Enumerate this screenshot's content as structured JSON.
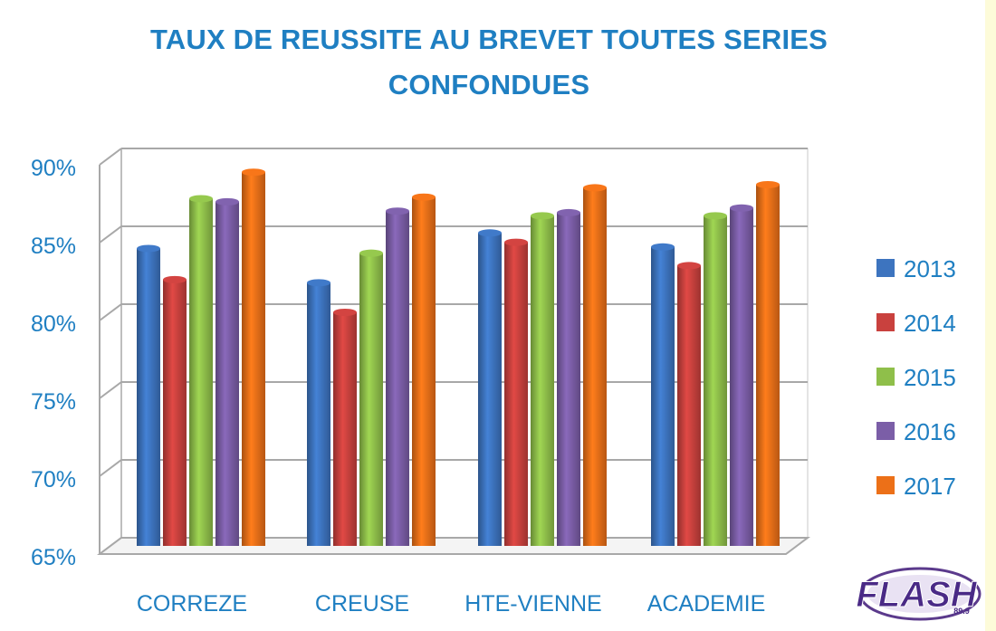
{
  "chart_data": {
    "type": "bar",
    "title_lines": [
      "TAUX DE REUSSITE AU BREVET TOUTES SERIES",
      "CONFONDUES"
    ],
    "categories": [
      "CORREZE",
      "CREUSE",
      "HTE-VIENNE",
      "ACADEMIE"
    ],
    "series": [
      {
        "name": "2013",
        "color": "#3d74bf",
        "values": [
          84.1,
          81.9,
          85.1,
          84.2
        ]
      },
      {
        "name": "2014",
        "color": "#c9413e",
        "values": [
          82.1,
          80.0,
          84.5,
          83.0
        ]
      },
      {
        "name": "2015",
        "color": "#8fbf4a",
        "values": [
          87.3,
          83.8,
          86.2,
          86.2
        ]
      },
      {
        "name": "2016",
        "color": "#7b5ea7",
        "values": [
          87.1,
          86.5,
          86.4,
          86.7
        ]
      },
      {
        "name": "2017",
        "color": "#ec7018",
        "values": [
          89.0,
          87.4,
          88.0,
          88.2
        ]
      }
    ],
    "ylim": [
      65,
      90
    ],
    "yticks": [
      "65%",
      "70%",
      "75%",
      "80%",
      "85%",
      "90%"
    ],
    "ytick_values": [
      65,
      70,
      75,
      80,
      85,
      90
    ],
    "grid": true,
    "legend_position": "right",
    "label_color": "#1f7fc2"
  },
  "logo": {
    "text": "FLASH",
    "small_text": "89.9",
    "name": "flash-logo"
  }
}
